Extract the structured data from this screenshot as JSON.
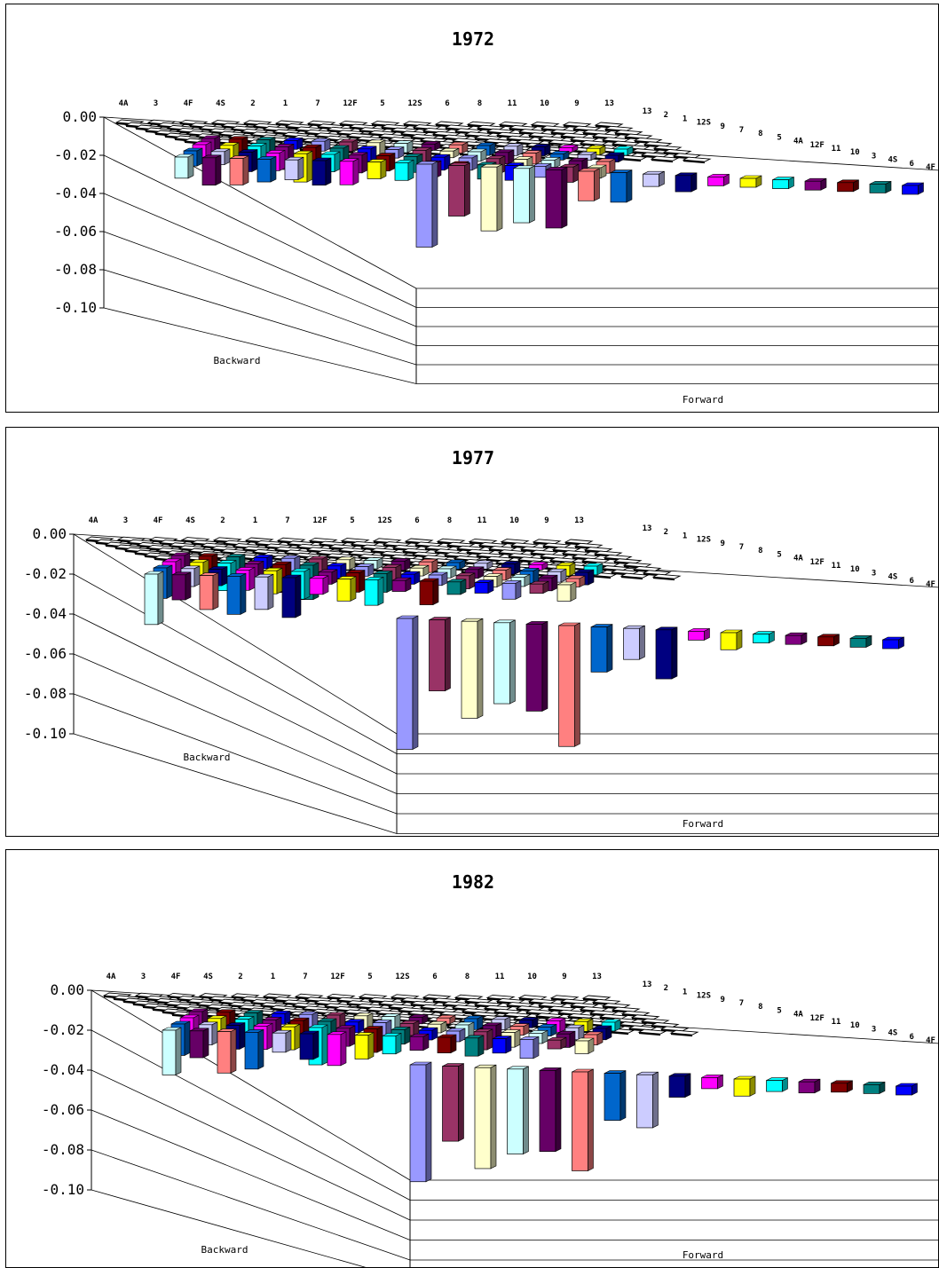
{
  "chart_data": [
    {
      "type": "bar",
      "chart_style": "3d-bar-grid",
      "title": "1972",
      "ylim": [
        -0.1,
        0.0
      ],
      "yticks": [
        "0.00",
        "-0.02",
        "-0.04",
        "-0.06",
        "-0.08",
        "-0.10"
      ],
      "xlabel": "Forward",
      "ylabel": "Backward",
      "backward_categories": [
        "4A",
        "3",
        "4F",
        "4S",
        "2",
        "1",
        "7",
        "12F",
        "5",
        "12S",
        "6",
        "8",
        "11",
        "10",
        "9",
        "13"
      ],
      "forward_categories": [
        "13",
        "2",
        "1",
        "12S",
        "9",
        "7",
        "8",
        "5",
        "4A",
        "12F",
        "11",
        "10",
        "3",
        "4S",
        "6",
        "4F"
      ],
      "front_row_values": [
        -0.09,
        -0.073,
        -0.08,
        -0.075,
        -0.077,
        -0.062,
        -0.062,
        -0.053,
        -0.055,
        -0.045,
        -0.05,
        -0.042,
        -0.043,
        -0.038,
        -0.038,
        -0.038
      ]
    },
    {
      "type": "bar",
      "chart_style": "3d-bar-grid",
      "title": "1977",
      "ylim": [
        -0.1,
        0.0
      ],
      "yticks": [
        "0.00",
        "-0.02",
        "-0.04",
        "-0.06",
        "-0.08",
        "-0.10"
      ],
      "xlabel": "Forward",
      "ylabel": "Backward",
      "backward_categories": [
        "4A",
        "3",
        "4F",
        "4S",
        "2",
        "1",
        "7",
        "12F",
        "5",
        "12S",
        "6",
        "8",
        "11",
        "10",
        "9",
        "13"
      ],
      "forward_categories": [
        "13",
        "2",
        "1",
        "12S",
        "9",
        "7",
        "8",
        "5",
        "4A",
        "12F",
        "11",
        "10",
        "3",
        "4S",
        "6",
        "4F"
      ],
      "front_row_values": [
        -0.11,
        -0.08,
        -0.093,
        -0.085,
        -0.088,
        -0.105,
        -0.067,
        -0.06,
        -0.069,
        -0.047,
        -0.053,
        -0.047,
        -0.047,
        -0.04,
        -0.04,
        -0.042
      ]
    },
    {
      "type": "bar",
      "chart_style": "3d-bar-grid",
      "title": "1982",
      "ylim": [
        -0.1,
        0.0
      ],
      "yticks": [
        "0.00",
        "-0.02",
        "-0.04",
        "-0.06",
        "-0.08",
        "-0.10"
      ],
      "xlabel": "Forward",
      "ylabel": "Backward",
      "backward_categories": [
        "4A",
        "3",
        "4F",
        "4S",
        "2",
        "1",
        "7",
        "12F",
        "5",
        "12S",
        "6",
        "8",
        "11",
        "10",
        "9",
        "13"
      ],
      "forward_categories": [
        "13",
        "2",
        "1",
        "12S",
        "9",
        "7",
        "8",
        "5",
        "4A",
        "12F",
        "11",
        "10",
        "3",
        "4S",
        "6",
        "4F"
      ],
      "front_row_values": [
        -0.103,
        -0.082,
        -0.095,
        -0.087,
        -0.085,
        -0.094,
        -0.068,
        -0.071,
        -0.055,
        -0.05,
        -0.053,
        -0.05,
        -0.05,
        -0.042,
        -0.042,
        -0.044
      ]
    }
  ],
  "palette": [
    "#9999FF",
    "#993366",
    "#FFFFCC",
    "#CCFFFF",
    "#660066",
    "#FF8080",
    "#0066CC",
    "#CCCCFF",
    "#000080",
    "#FF00FF",
    "#FFFF00",
    "#00FFFF",
    "#800080",
    "#800000",
    "#008080",
    "#0000FF"
  ]
}
